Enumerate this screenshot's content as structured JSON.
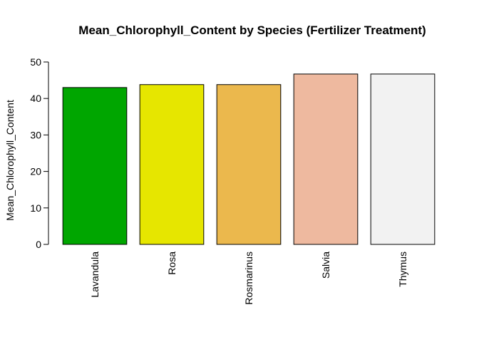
{
  "chart_data": {
    "type": "bar",
    "title": "Mean_Chlorophyll_Content by Species (Fertilizer Treatment)",
    "xlabel": "",
    "ylabel": "Mean_Chlorophyll_Content",
    "categories": [
      "Lavandula",
      "Rosa",
      "Rosmarinus",
      "Salvia",
      "Thymus"
    ],
    "values": [
      43.0,
      43.8,
      43.8,
      46.7,
      46.7
    ],
    "colors": [
      "#00A600",
      "#E6E600",
      "#EBB84D",
      "#EEB99F",
      "#F2F2F2"
    ],
    "ylim": [
      0,
      50
    ],
    "yticks": [
      "0",
      "10",
      "20",
      "30",
      "40",
      "50"
    ],
    "grid": false,
    "legend": "none",
    "bar_border_color": "#000000"
  }
}
